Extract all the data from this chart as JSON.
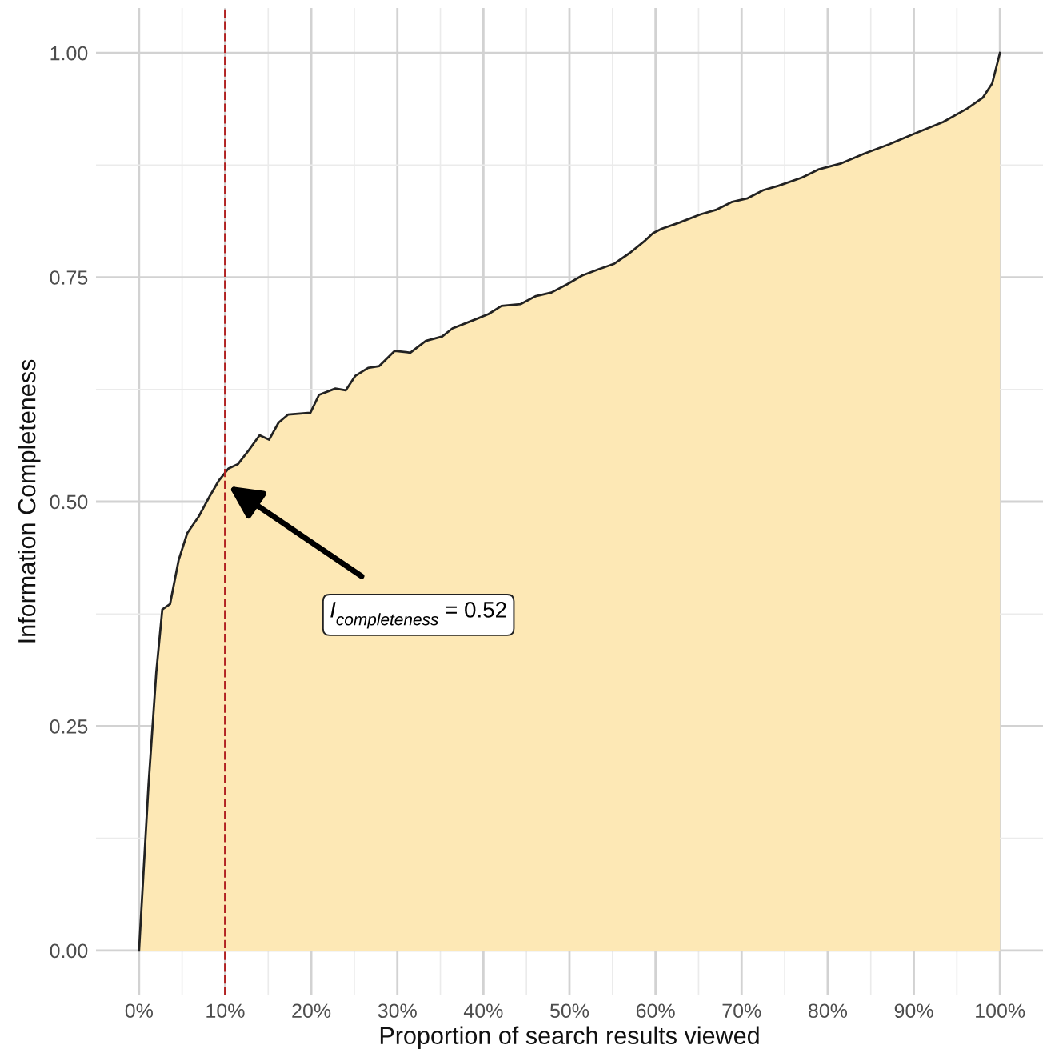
{
  "chart_data": {
    "type": "area",
    "xlabel": "Proportion of search results viewed",
    "ylabel": "Information Completeness",
    "x": [
      0,
      1.1,
      2.0,
      2.7,
      3.6,
      4.6,
      5.6,
      6.9,
      8.2,
      9.3,
      10.4,
      11.5,
      12.8,
      14.0,
      15.1,
      16.2,
      17.3,
      19.9,
      20.9,
      22.8,
      24.0,
      25.1,
      26.6,
      27.9,
      29.7,
      31.5,
      33.3,
      35.2,
      36.4,
      38.8,
      40.6,
      42.1,
      44.3,
      46.1,
      47.9,
      49.7,
      51.5,
      53.4,
      55.2,
      57.0,
      58.8,
      59.7,
      60.7,
      62.8,
      65.2,
      67.0,
      68.9,
      70.7,
      72.5,
      74.3,
      77.0,
      78.9,
      81.6,
      84.3,
      87.1,
      89.8,
      93.4,
      96.2,
      98.0,
      99.1,
      100
    ],
    "series": [
      {
        "color": "#fde8b5",
        "values": [
          0,
          0.185,
          0.31,
          0.38,
          0.386,
          0.435,
          0.465,
          0.483,
          0.506,
          0.524,
          0.537,
          0.542,
          0.558,
          0.574,
          0.569,
          0.588,
          0.597,
          0.599,
          0.619,
          0.626,
          0.624,
          0.64,
          0.649,
          0.651,
          0.668,
          0.666,
          0.679,
          0.684,
          0.693,
          0.702,
          0.709,
          0.718,
          0.72,
          0.729,
          0.733,
          0.742,
          0.752,
          0.759,
          0.765,
          0.777,
          0.791,
          0.799,
          0.804,
          0.811,
          0.82,
          0.825,
          0.834,
          0.838,
          0.847,
          0.852,
          0.861,
          0.87,
          0.877,
          0.888,
          0.898,
          0.909,
          0.923,
          0.938,
          0.95,
          0.966,
          1.0
        ]
      }
    ],
    "xlim": [
      -5,
      105
    ],
    "ylim": [
      -0.05,
      1.05
    ],
    "xticks": [
      {
        "value": 0,
        "label": "0%"
      },
      {
        "value": 10,
        "label": "10%"
      },
      {
        "value": 20,
        "label": "20%"
      },
      {
        "value": 30,
        "label": "30%"
      },
      {
        "value": 40,
        "label": "40%"
      },
      {
        "value": 50,
        "label": "50%"
      },
      {
        "value": 60,
        "label": "60%"
      },
      {
        "value": 70,
        "label": "70%"
      },
      {
        "value": 80,
        "label": "80%"
      },
      {
        "value": 90,
        "label": "90%"
      },
      {
        "value": 100,
        "label": "100%"
      }
    ],
    "yticks": [
      {
        "value": 0,
        "label": "0.00"
      },
      {
        "value": 0.25,
        "label": "0.25"
      },
      {
        "value": 0.5,
        "label": "0.50"
      },
      {
        "value": 0.75,
        "label": "0.75"
      },
      {
        "value": 1,
        "label": "1.00"
      }
    ],
    "ref_lines": [
      {
        "axis": "x",
        "value": 10,
        "color": "#b22222",
        "line_style": "dashed"
      }
    ],
    "annotations": [
      {
        "text": "I$_{completeness}$ = 0.52",
        "x": 10,
        "y": 0.52
      }
    ],
    "grid": true,
    "line_style": "solid"
  }
}
